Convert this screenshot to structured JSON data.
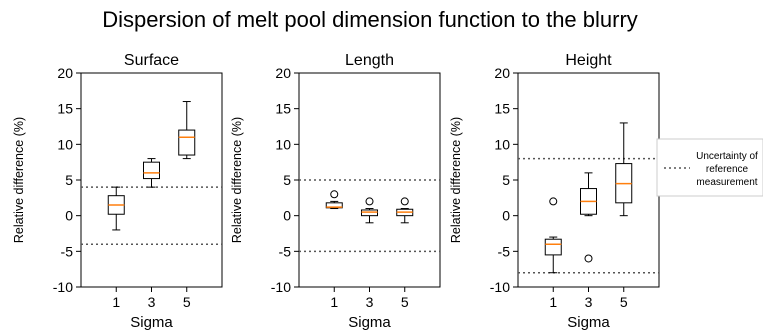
{
  "figure": {
    "title": "Dispersion of melt pool dimension function to the blurry",
    "legend": {
      "lines": [
        "Uncertainty of",
        "reference",
        "measurement"
      ],
      "line_style": "dotted",
      "placement": "right"
    }
  },
  "chart_data": [
    {
      "type": "box",
      "title": "Surface",
      "xlabel": "Sigma",
      "ylabel": "Relative difference (%)",
      "categories": [
        "1",
        "3",
        "5"
      ],
      "ylim": [
        -10,
        20
      ],
      "yticks": [
        -10,
        -5,
        0,
        5,
        10,
        15,
        20
      ],
      "boxes": [
        {
          "whisker_low": -2,
          "q1": 0.2,
          "median": 1.5,
          "q3": 2.8,
          "whisker_high": 4,
          "outliers": []
        },
        {
          "whisker_low": 4,
          "q1": 5.2,
          "median": 6,
          "q3": 7.5,
          "whisker_high": 8,
          "outliers": []
        },
        {
          "whisker_low": 8,
          "q1": 8.5,
          "median": 11,
          "q3": 12,
          "whisker_high": 16,
          "outliers": []
        }
      ],
      "reference_lines": [
        4,
        -4
      ]
    },
    {
      "type": "box",
      "title": "Length",
      "xlabel": "Sigma",
      "ylabel": "Relative difference (%)",
      "categories": [
        "1",
        "3",
        "5"
      ],
      "ylim": [
        -10,
        20
      ],
      "yticks": [
        -10,
        -5,
        0,
        5,
        10,
        15,
        20
      ],
      "boxes": [
        {
          "whisker_low": 1,
          "q1": 1.1,
          "median": 1.2,
          "q3": 1.8,
          "whisker_high": 2,
          "outliers": [
            3
          ]
        },
        {
          "whisker_low": -1,
          "q1": 0,
          "median": 0.5,
          "q3": 0.8,
          "whisker_high": 1,
          "outliers": [
            2
          ]
        },
        {
          "whisker_low": -1,
          "q1": 0,
          "median": 0.5,
          "q3": 0.9,
          "whisker_high": 1,
          "outliers": [
            2
          ]
        }
      ],
      "reference_lines": [
        5,
        -5
      ]
    },
    {
      "type": "box",
      "title": "Height",
      "xlabel": "Sigma",
      "ylabel": "Relative difference (%)",
      "categories": [
        "1",
        "3",
        "5"
      ],
      "ylim": [
        -10,
        20
      ],
      "yticks": [
        -10,
        -5,
        0,
        5,
        10,
        15,
        20
      ],
      "boxes": [
        {
          "whisker_low": -8,
          "q1": -5.5,
          "median": -4,
          "q3": -3.3,
          "whisker_high": -3,
          "outliers": [
            2
          ]
        },
        {
          "whisker_low": 0,
          "q1": 0.2,
          "median": 2,
          "q3": 3.8,
          "whisker_high": 6,
          "outliers": [
            -6
          ]
        },
        {
          "whisker_low": 0,
          "q1": 1.8,
          "median": 4.5,
          "q3": 7.3,
          "whisker_high": 13,
          "outliers": []
        }
      ],
      "reference_lines": [
        8,
        -8
      ]
    }
  ],
  "colors": {
    "median": "#ff7f0e",
    "box": "#000000",
    "reference_line": "#555555"
  }
}
